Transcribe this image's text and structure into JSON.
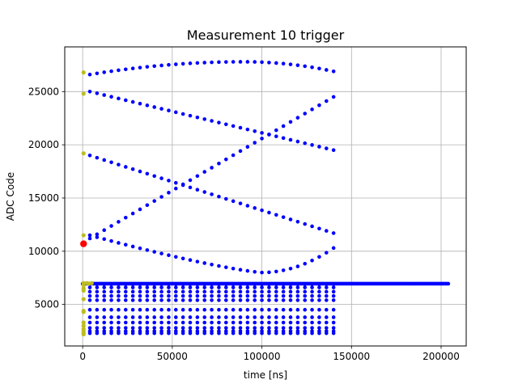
{
  "chart_data": {
    "type": "scatter",
    "title": "Measurement 10 trigger",
    "xlabel": "time [ns]",
    "ylabel": "ADC Code",
    "xlim": [
      -10000,
      214000
    ],
    "ylim": [
      1100,
      29200
    ],
    "xticks": [
      0,
      50000,
      100000,
      150000,
      200000
    ],
    "xtick_labels": [
      "0",
      "50000",
      "100000",
      "150000",
      "200000"
    ],
    "yticks": [
      5000,
      10000,
      15000,
      20000,
      25000
    ],
    "ytick_labels": [
      "5000",
      "10000",
      "15000",
      "20000",
      "25000"
    ],
    "grid": true,
    "legend": "none",
    "colors": {
      "main": "#0000ff",
      "start": "#bcbd22",
      "trigger": "#ff0000",
      "grid": "#b0b0b0"
    },
    "series": [
      {
        "color": "blue",
        "description_curves": [
          {
            "x_start": 4000,
            "x_end": 140000,
            "y_start": 26600,
            "y_end": 26900,
            "peak_x": 90000,
            "peak_y": 27800
          },
          {
            "x_start": 4000,
            "x_end": 140000,
            "y_start": 25000,
            "y_end": 19500
          },
          {
            "x_start": 4000,
            "x_end": 140000,
            "y_start": 11200,
            "y_end": 24500
          },
          {
            "x_start": 4000,
            "x_end": 140000,
            "y_start": 19000,
            "y_end": 11700
          },
          {
            "x_start": 4000,
            "x_end": 140000,
            "y_start": 11500,
            "y_end": 10300,
            "trough_x": 100000,
            "trough_y": 8000
          }
        ],
        "baseline": {
          "x_start": 0,
          "x_end": 204000,
          "y": 6950
        },
        "lower_rows": {
          "x_start": 4000,
          "x_end": 140000,
          "y_values": [
            6900,
            6600,
            6200,
            5800,
            5400,
            4500,
            3800,
            3300,
            2800,
            2500,
            2300
          ]
        }
      },
      {
        "color": "olive",
        "points": [
          [
            500,
            26800
          ],
          [
            500,
            24800
          ],
          [
            500,
            19200
          ],
          [
            500,
            11500
          ],
          [
            500,
            7000
          ],
          [
            500,
            6800
          ],
          [
            500,
            6500
          ],
          [
            500,
            6300
          ],
          [
            500,
            5500
          ],
          [
            500,
            4400
          ],
          [
            500,
            4300
          ],
          [
            500,
            3300
          ],
          [
            500,
            3000
          ],
          [
            500,
            2700
          ],
          [
            500,
            2500
          ],
          [
            500,
            2300
          ],
          [
            500,
            2200
          ],
          [
            2500,
            7000
          ],
          [
            3500,
            6950
          ],
          [
            5000,
            7000
          ]
        ]
      },
      {
        "color": "red",
        "points": [
          [
            500,
            10700
          ]
        ]
      }
    ]
  }
}
